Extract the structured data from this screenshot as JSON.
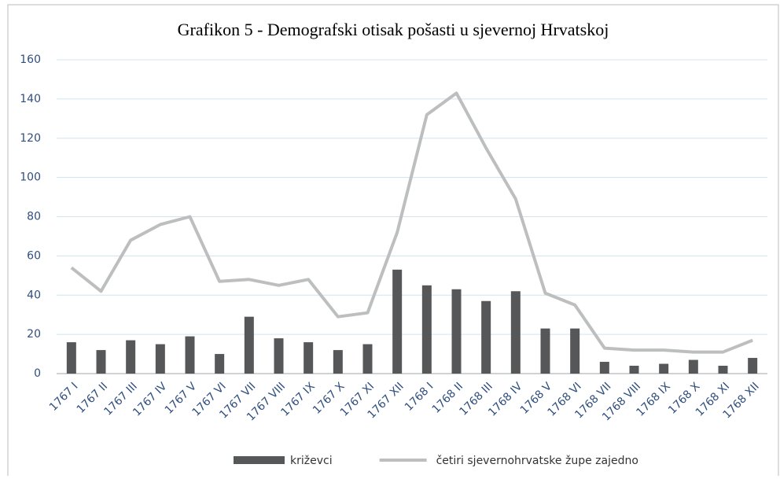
{
  "chart_data": {
    "type": "bar",
    "title": "Grafikon 5 - Demografski otisak pošasti u sjevernoj Hrvatskoj",
    "categories": [
      "1767 I",
      "1767 II",
      "1767 III",
      "1767 IV",
      "1767 V",
      "1767 VI",
      "1767 VII",
      "1767 VIII",
      "1767 IX",
      "1767 X",
      "1767 XI",
      "1767 XII",
      "1768 I",
      "1768 II",
      "1768 III",
      "1768 IV",
      "1768 V",
      "1768 VI",
      "1768 VII",
      "1768 VIII",
      "1768 IX",
      "1768 X",
      "1768 XI",
      "1768 XII"
    ],
    "series": [
      {
        "name": "križevci",
        "type": "bar",
        "color": "#555758",
        "values": [
          16,
          12,
          17,
          15,
          19,
          10,
          29,
          18,
          16,
          12,
          15,
          53,
          45,
          43,
          37,
          42,
          23,
          23,
          6,
          4,
          5,
          7,
          4,
          8
        ]
      },
      {
        "name": "četiri sjevernohrvatske župe zajedno",
        "type": "line",
        "color": "#bdbfbf",
        "values": [
          54,
          42,
          68,
          76,
          80,
          47,
          48,
          45,
          48,
          29,
          31,
          72,
          132,
          143,
          115,
          89,
          41,
          35,
          13,
          12,
          12,
          11,
          11,
          17
        ]
      }
    ],
    "ylim": [
      0,
      160
    ],
    "yticks": [
      0,
      20,
      40,
      60,
      80,
      100,
      120,
      140,
      160
    ],
    "grid": true,
    "legend": "bottom"
  }
}
